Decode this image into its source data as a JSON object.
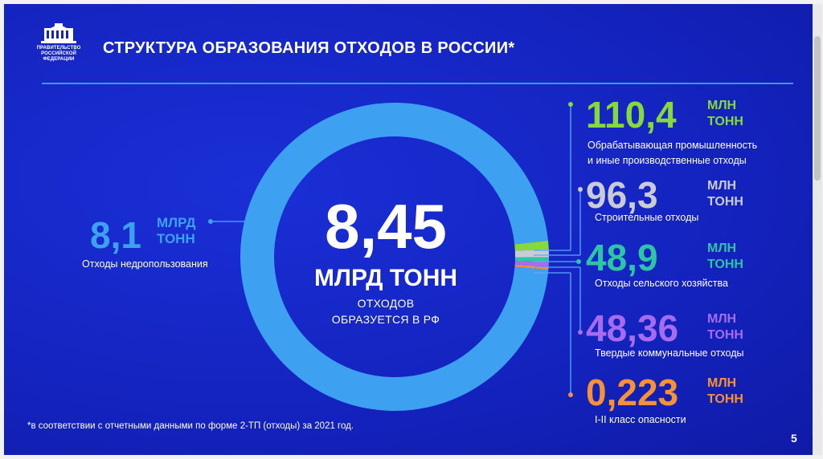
{
  "header": {
    "logo_text": [
      "ПРАВИТЕЛЬСТВО",
      "РОССИЙСКОЙ",
      "ФЕДЕРАЦИИ"
    ],
    "title": "СТРУКТУРА ОБРАЗОВАНИЯ ОТХОДОВ В РОССИИ*"
  },
  "center": {
    "value": "8,45",
    "unit": "МЛРД ТОНН",
    "caption_line1": "ОТХОДОВ",
    "caption_line2": "ОБРАЗУЕТСЯ В РФ"
  },
  "left_item": {
    "value": "8,1",
    "unit_line1": "МЛРД",
    "unit_line2": "ТОНН",
    "label": "Отходы недропользования",
    "color": "#3ea0f0"
  },
  "right_items": [
    {
      "value": "110,4",
      "unit_line1": "МЛН",
      "unit_line2": "ТОНН",
      "label_line1": "Обрабатывающая промышленность",
      "label_line2": "и иные производственные отходы",
      "color": "#86d93c"
    },
    {
      "value": "96,3",
      "unit_line1": "МЛН",
      "unit_line2": "ТОНН",
      "label_line1": "Строительные отходы",
      "label_line2": "",
      "color": "#c9cbd6"
    },
    {
      "value": "48,9",
      "unit_line1": "МЛН",
      "unit_line2": "ТОНН",
      "label_line1": "Отходы сельского хозяйства",
      "label_line2": "",
      "color": "#2fc4a6"
    },
    {
      "value": "48,36",
      "unit_line1": "МЛН",
      "unit_line2": "ТОНН",
      "label_line1": "Твердые коммунальные отходы",
      "label_line2": "",
      "color": "#a66cf0"
    },
    {
      "value": "0,223",
      "unit_line1": "МЛН",
      "unit_line2": "ТОНН",
      "label_line1": "I-II класс опасности",
      "label_line2": "",
      "color": "#f5913a"
    }
  ],
  "chart_data": {
    "type": "pie",
    "title": "СТРУКТУРА ОБРАЗОВАНИЯ ОТХОДОВ В РОССИИ*",
    "total": 8.45,
    "total_unit": "МЛРД ТОНН",
    "categories": [
      "Отходы недропользования",
      "Обрабатывающая промышленность и иные производственные отходы",
      "Строительные отходы",
      "Отходы сельского хозяйства",
      "Твердые коммунальные отходы",
      "I-II класс опасности"
    ],
    "values_mln_t": [
      8100,
      110.4,
      96.3,
      48.9,
      48.36,
      0.223
    ],
    "colors": [
      "#3ea0f0",
      "#86d93c",
      "#c9cbd6",
      "#2fc4a6",
      "#a66cf0",
      "#f5913a"
    ]
  },
  "footnote": "*в соответствии с отчетными данными по форме 2-ТП (отходы) за 2021 год.",
  "page_number": "5",
  "colors": {
    "background": "#1424c0",
    "divider": "#4a8fe8",
    "connector": "#5aa8ff"
  }
}
